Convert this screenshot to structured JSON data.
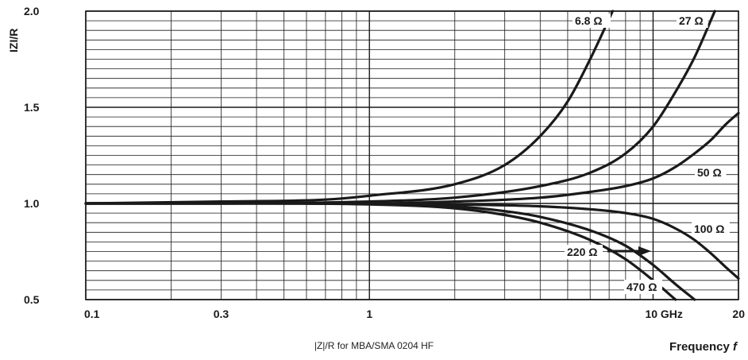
{
  "chart_data": {
    "type": "line",
    "ylabel": "IZI/R",
    "xlabel": "Frequency",
    "xlabel_var": "f",
    "caption": "|Z|/R for MBA/SMA 0204 HF",
    "xscale": "log",
    "xlim": [
      0.1,
      20
    ],
    "ylim": [
      0.5,
      2.0
    ],
    "x_ticks": [
      {
        "value": 0.1,
        "label": "0.1"
      },
      {
        "value": 0.3,
        "label": "0.3"
      },
      {
        "value": 1,
        "label": "1"
      },
      {
        "value": 10,
        "label": "10 GHz"
      },
      {
        "value": 20,
        "label": "20"
      }
    ],
    "y_ticks": [
      {
        "value": 0.5,
        "label": "0.5"
      },
      {
        "value": 1.0,
        "label": "1.0"
      },
      {
        "value": 1.5,
        "label": "1.5"
      },
      {
        "value": 2.0,
        "label": "2.0"
      }
    ],
    "grid": true,
    "series": [
      {
        "name": "6.8 Ω",
        "x": [
          0.1,
          0.3,
          0.7,
          1,
          2,
          3,
          4,
          5,
          6,
          7.2
        ],
        "y": [
          1.0,
          1.01,
          1.02,
          1.04,
          1.1,
          1.2,
          1.35,
          1.53,
          1.75,
          2.0
        ]
      },
      {
        "name": "27 Ω",
        "x": [
          0.1,
          0.3,
          1,
          2,
          4,
          6,
          8,
          10,
          12,
          14,
          16.5
        ],
        "y": [
          1.0,
          1.0,
          1.01,
          1.03,
          1.09,
          1.16,
          1.26,
          1.4,
          1.58,
          1.76,
          2.0
        ]
      },
      {
        "name": "50 Ω",
        "x": [
          0.1,
          0.3,
          1,
          2,
          4,
          6,
          8,
          10,
          12,
          14,
          16,
          18,
          20
        ],
        "y": [
          1.0,
          1.0,
          1.0,
          1.01,
          1.03,
          1.06,
          1.09,
          1.13,
          1.19,
          1.26,
          1.33,
          1.41,
          1.47
        ]
      },
      {
        "name": "100 Ω",
        "x": [
          0.1,
          0.3,
          1,
          2,
          4,
          6,
          8,
          10,
          12,
          14,
          16,
          18,
          20
        ],
        "y": [
          1.0,
          1.0,
          1.0,
          0.995,
          0.985,
          0.97,
          0.95,
          0.92,
          0.87,
          0.81,
          0.74,
          0.67,
          0.61
        ]
      },
      {
        "name": "220 Ω",
        "x": [
          0.1,
          0.3,
          1,
          2,
          3,
          4,
          6,
          8,
          10,
          12,
          14
        ],
        "y": [
          1.0,
          1.0,
          0.998,
          0.985,
          0.96,
          0.93,
          0.86,
          0.78,
          0.68,
          0.58,
          0.5
        ]
      },
      {
        "name": "470 Ω",
        "x": [
          0.1,
          0.3,
          1,
          2,
          3,
          4,
          6,
          8,
          10,
          12
        ],
        "y": [
          1.0,
          1.0,
          0.995,
          0.975,
          0.94,
          0.9,
          0.81,
          0.71,
          0.6,
          0.5
        ]
      }
    ]
  }
}
